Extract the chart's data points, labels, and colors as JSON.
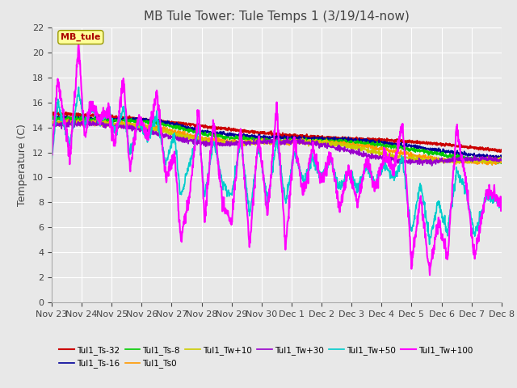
{
  "title": "MB Tule Tower: Tule Temps 1 (3/19/14-now)",
  "ylabel": "Temperature (C)",
  "ylim": [
    0,
    22
  ],
  "yticks": [
    0,
    2,
    4,
    6,
    8,
    10,
    12,
    14,
    16,
    18,
    20,
    22
  ],
  "xlabel_dates": [
    "Nov 23",
    "Nov 24",
    "Nov 25",
    "Nov 26",
    "Nov 27",
    "Nov 28",
    "Nov 29",
    "Nov 30",
    "Dec 1",
    "Dec 2",
    "Dec 3",
    "Dec 4",
    "Dec 5",
    "Dec 6",
    "Dec 7",
    "Dec 8"
  ],
  "legend_label": "MB_tule",
  "series_labels": [
    "Tul1_Ts-32",
    "Tul1_Ts-16",
    "Tul1_Ts-8",
    "Tul1_Ts0",
    "Tul1_Tw+10",
    "Tul1_Tw+30",
    "Tul1_Tw+50",
    "Tul1_Tw+100"
  ],
  "series_colors": [
    "#cc0000",
    "#000099",
    "#00cc00",
    "#ff9900",
    "#cccc00",
    "#9900cc",
    "#00cccc",
    "#ff00ff"
  ],
  "series_linewidths": [
    1.5,
    1.2,
    1.2,
    1.2,
    1.2,
    1.2,
    1.2,
    1.5
  ],
  "plot_bg_color": "#e8e8e8",
  "grid_color": "#ffffff",
  "title_fontsize": 11,
  "label_fontsize": 9,
  "tick_fontsize": 8
}
